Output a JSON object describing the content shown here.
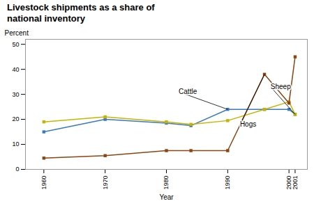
{
  "chart_data": {
    "type": "line",
    "title": "Livestock shipments as a share of\nnational inventory",
    "xlabel": "Year",
    "ylabel": "Percent",
    "x": [
      1960,
      1970,
      1980,
      1984,
      1990,
      1996,
      2000,
      2001
    ],
    "series": [
      {
        "name": "Cattle",
        "color": "#3a7abf",
        "values": [
          15,
          20,
          18.5,
          17.5,
          24,
          24,
          24,
          22
        ]
      },
      {
        "name": "Sheep",
        "color": "#c8b400",
        "values": [
          19,
          21,
          19,
          18,
          19.5,
          24,
          27,
          22
        ]
      },
      {
        "name": "Hogs",
        "color": "#8b4513",
        "values": [
          4.5,
          5.5,
          7.5,
          7.5,
          7.5,
          38,
          26.5,
          45
        ]
      }
    ],
    "annotations": [
      {
        "text": "Cattle",
        "x": 1990,
        "y": 24,
        "text_x": 1982,
        "text_y": 31
      },
      {
        "text": "Sheep",
        "x": 2001,
        "y": 22,
        "text_x": 1997,
        "text_y": 33
      },
      {
        "text": "Hogs",
        "x": 1996,
        "y": 38,
        "text_x": 1992,
        "text_y": 18
      }
    ],
    "xlim": [
      1957,
      2003
    ],
    "ylim": [
      0,
      52
    ],
    "xticks": [
      1960,
      1970,
      1980,
      1990,
      2000,
      2001
    ],
    "yticks": [
      0,
      10,
      20,
      30,
      40,
      50
    ],
    "marker": "square",
    "grid": false
  }
}
